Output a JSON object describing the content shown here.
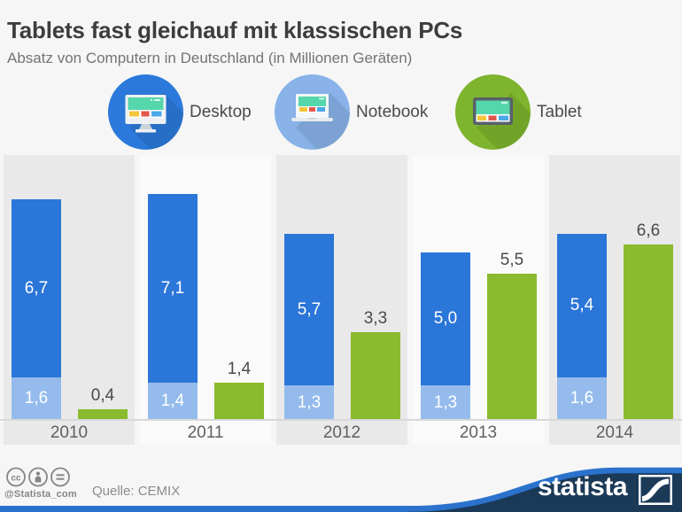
{
  "title": "Tablets fast gleichauf mit klassischen PCs",
  "subtitle": "Absatz von Computern in Deutschland (in Millionen Geräten)",
  "legend": [
    {
      "label": "Desktop",
      "icon": "desktop-monitor-icon",
      "circle_color": "#2b79da"
    },
    {
      "label": "Notebook",
      "icon": "notebook-laptop-icon",
      "circle_color": "#88b2e8"
    },
    {
      "label": "Tablet",
      "icon": "tablet-icon",
      "circle_color": "#7eb42e"
    }
  ],
  "chart_data": {
    "type": "bar",
    "subtype": "stacked-and-grouped",
    "categories": [
      "2010",
      "2011",
      "2012",
      "2013",
      "2014"
    ],
    "series": [
      {
        "name": "Desktop",
        "color": "#2b76d9",
        "stack": "pc",
        "values": [
          6.7,
          7.1,
          5.7,
          5.0,
          5.4
        ],
        "labels": [
          "6,7",
          "7,1",
          "5,7",
          "5,0",
          "5,4"
        ]
      },
      {
        "name": "Notebook",
        "color": "#94bbec",
        "stack": "pc",
        "values": [
          1.6,
          1.4,
          1.3,
          1.3,
          1.6
        ],
        "labels": [
          "1,6",
          "1,4",
          "1,3",
          "1,3",
          "1,6"
        ]
      },
      {
        "name": "Tablet",
        "color": "#8aba2e",
        "stack": null,
        "values": [
          0.4,
          1.4,
          3.3,
          5.5,
          6.6
        ],
        "labels": [
          "0,4",
          "1,4",
          "3,3",
          "5,5",
          "6,6"
        ]
      }
    ],
    "unit": "Millionen Geräte",
    "ylim": [
      0,
      10
    ],
    "grid": false,
    "legend_position": "top",
    "value_label_inside_color": "#ffffff",
    "value_label_outside_color": "#4a4a4a"
  },
  "footer": {
    "license_icons": [
      "cc-icon",
      "attribution-person-icon",
      "equal-nd-icon"
    ],
    "handle": "@Statista_com",
    "source": "Quelle: CEMIX",
    "brand": "statista",
    "brand_mark_icon": "statista-logo-mark"
  },
  "colors": {
    "background": "#f6f6f6",
    "panel_dark": "#e9e9e9",
    "panel_light": "#fafafa",
    "baseline": "#d8d8d8",
    "navy": "#1b3a57",
    "footer_blue": "#2b72cd",
    "title_text": "#3d3d3d",
    "subtitle_text": "#747474"
  }
}
